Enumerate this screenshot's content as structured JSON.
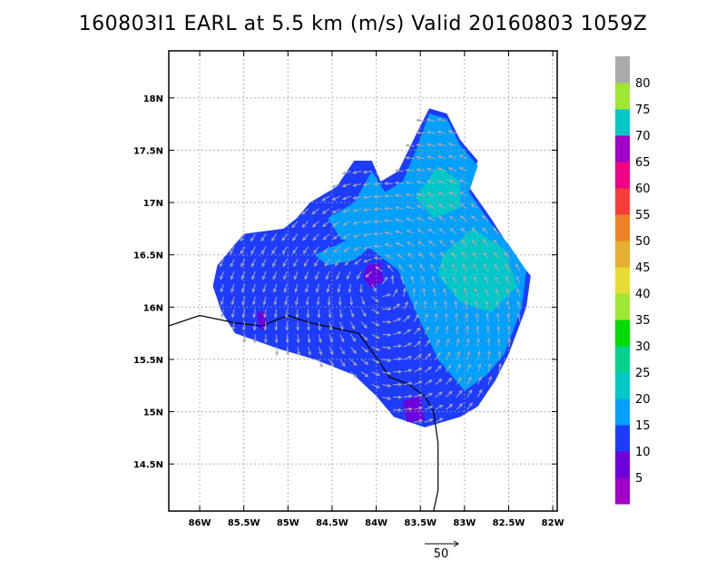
{
  "title": "160803I1 EARL at 5.5 km (m/s) Valid 20160803 1059Z",
  "chart_data": {
    "type": "heatmap",
    "title": "160803I1 EARL at 5.5 km (m/s) Valid 20160803 1059Z",
    "xlabel": "",
    "ylabel": "",
    "xlim": [
      -86.35,
      -81.95
    ],
    "ylim": [
      14.05,
      18.45
    ],
    "grid": true,
    "x_ticks": [
      -86,
      -85.5,
      -85,
      -84.5,
      -84,
      -83.5,
      -83,
      -82.5,
      -82
    ],
    "x_tick_labels": [
      "86W",
      "85.5W",
      "85W",
      "84.5W",
      "84W",
      "83.5W",
      "83W",
      "82.5W",
      "82W"
    ],
    "y_ticks": [
      14.5,
      15,
      15.5,
      16,
      16.5,
      17,
      17.5,
      18
    ],
    "y_tick_labels": [
      "14.5N",
      "15N",
      "15.5N",
      "16N",
      "16.5N",
      "17N",
      "17.5N",
      "18N"
    ],
    "colorbar": {
      "labels": [
        "5",
        "10",
        "15",
        "20",
        "25",
        "30",
        "35",
        "40",
        "45",
        "50",
        "55",
        "60",
        "65",
        "70",
        "75",
        "80"
      ],
      "colors": [
        "#a000c8",
        "#6e00dc",
        "#1e3cff",
        "#00a0ff",
        "#00c8c8",
        "#00d28c",
        "#00dc00",
        "#a0e632",
        "#e6dc32",
        "#e6af2d",
        "#f08228",
        "#fa3c3c",
        "#f00082",
        "#a000c8",
        "#00c8c8",
        "#a0e632",
        "#aaaaaa"
      ]
    },
    "vector_scale": {
      "label": "50",
      "value": 50
    },
    "coastline": [
      [
        -86.35,
        15.82
      ],
      [
        -86.0,
        15.92
      ],
      [
        -85.6,
        15.85
      ],
      [
        -85.3,
        15.82
      ],
      [
        -85.0,
        15.92
      ],
      [
        -84.75,
        15.85
      ],
      [
        -84.2,
        15.75
      ],
      [
        -84.0,
        15.52
      ],
      [
        -83.85,
        15.33
      ],
      [
        -83.65,
        15.27
      ],
      [
        -83.45,
        15.15
      ],
      [
        -83.35,
        15.0
      ],
      [
        -83.3,
        14.7
      ],
      [
        -83.3,
        14.25
      ],
      [
        -83.35,
        14.05
      ]
    ],
    "wind_regions": [
      {
        "name": "outer-envelope",
        "speed": 12,
        "polygon": [
          [
            -85.8,
            16.4
          ],
          [
            -85.5,
            16.7
          ],
          [
            -85.05,
            16.75
          ],
          [
            -84.9,
            16.85
          ],
          [
            -84.75,
            17.0
          ],
          [
            -84.45,
            17.15
          ],
          [
            -84.25,
            17.4
          ],
          [
            -84.05,
            17.4
          ],
          [
            -83.95,
            17.2
          ],
          [
            -83.75,
            17.3
          ],
          [
            -83.55,
            17.65
          ],
          [
            -83.4,
            17.9
          ],
          [
            -83.2,
            17.85
          ],
          [
            -83.05,
            17.6
          ],
          [
            -82.85,
            17.4
          ],
          [
            -82.95,
            17.15
          ],
          [
            -82.7,
            16.85
          ],
          [
            -82.55,
            16.65
          ],
          [
            -82.4,
            16.45
          ],
          [
            -82.25,
            16.3
          ],
          [
            -82.3,
            16.0
          ],
          [
            -82.5,
            15.55
          ],
          [
            -82.65,
            15.3
          ],
          [
            -82.85,
            15.05
          ],
          [
            -83.05,
            14.95
          ],
          [
            -83.45,
            14.85
          ],
          [
            -83.8,
            14.95
          ],
          [
            -84.0,
            15.15
          ],
          [
            -84.25,
            15.35
          ],
          [
            -84.7,
            15.5
          ],
          [
            -85.1,
            15.6
          ],
          [
            -85.6,
            15.75
          ],
          [
            -85.75,
            15.95
          ],
          [
            -85.85,
            16.2
          ]
        ]
      },
      {
        "name": "northern-band",
        "speed": 17,
        "polygon": [
          [
            -84.25,
            17.0
          ],
          [
            -84.05,
            17.3
          ],
          [
            -83.9,
            17.1
          ],
          [
            -83.7,
            17.2
          ],
          [
            -83.55,
            17.5
          ],
          [
            -83.4,
            17.85
          ],
          [
            -83.2,
            17.8
          ],
          [
            -83.05,
            17.55
          ],
          [
            -82.85,
            17.35
          ],
          [
            -82.95,
            17.1
          ],
          [
            -82.7,
            16.8
          ],
          [
            -82.5,
            16.6
          ],
          [
            -82.3,
            16.35
          ],
          [
            -82.35,
            16.0
          ],
          [
            -82.55,
            15.55
          ],
          [
            -82.75,
            15.35
          ],
          [
            -83.0,
            15.2
          ],
          [
            -83.3,
            15.5
          ],
          [
            -83.55,
            15.95
          ],
          [
            -83.75,
            16.35
          ],
          [
            -84.05,
            16.55
          ],
          [
            -84.4,
            16.65
          ],
          [
            -84.55,
            16.85
          ]
        ]
      },
      {
        "name": "ne-maximum",
        "speed": 22,
        "polygon": [
          [
            -83.55,
            17.05
          ],
          [
            -83.3,
            17.35
          ],
          [
            -83.05,
            17.2
          ],
          [
            -83.05,
            16.95
          ],
          [
            -83.35,
            16.85
          ]
        ]
      },
      {
        "name": "east-maximum",
        "speed": 22,
        "polygon": [
          [
            -83.25,
            16.5
          ],
          [
            -82.9,
            16.75
          ],
          [
            -82.55,
            16.55
          ],
          [
            -82.4,
            16.2
          ],
          [
            -82.7,
            15.95
          ],
          [
            -83.05,
            16.05
          ],
          [
            -83.3,
            16.3
          ]
        ]
      },
      {
        "name": "west-band",
        "speed": 17,
        "polygon": [
          [
            -84.7,
            16.5
          ],
          [
            -84.3,
            16.65
          ],
          [
            -84.1,
            16.55
          ],
          [
            -84.25,
            16.45
          ],
          [
            -84.55,
            16.4
          ]
        ]
      },
      {
        "name": "center-weak",
        "speed": 6,
        "polygon": [
          [
            -84.1,
            16.4
          ],
          [
            -83.95,
            16.42
          ],
          [
            -83.92,
            16.25
          ],
          [
            -84.05,
            16.18
          ],
          [
            -84.15,
            16.28
          ]
        ]
      },
      {
        "name": "sw-weak",
        "speed": 6,
        "polygon": [
          [
            -85.35,
            15.95
          ],
          [
            -85.25,
            15.95
          ],
          [
            -85.25,
            15.78
          ],
          [
            -85.33,
            15.8
          ]
        ]
      },
      {
        "name": "south-weak",
        "speed": 6,
        "polygon": [
          [
            -83.7,
            15.1
          ],
          [
            -83.5,
            15.15
          ],
          [
            -83.45,
            14.92
          ],
          [
            -83.65,
            14.9
          ]
        ]
      }
    ]
  }
}
